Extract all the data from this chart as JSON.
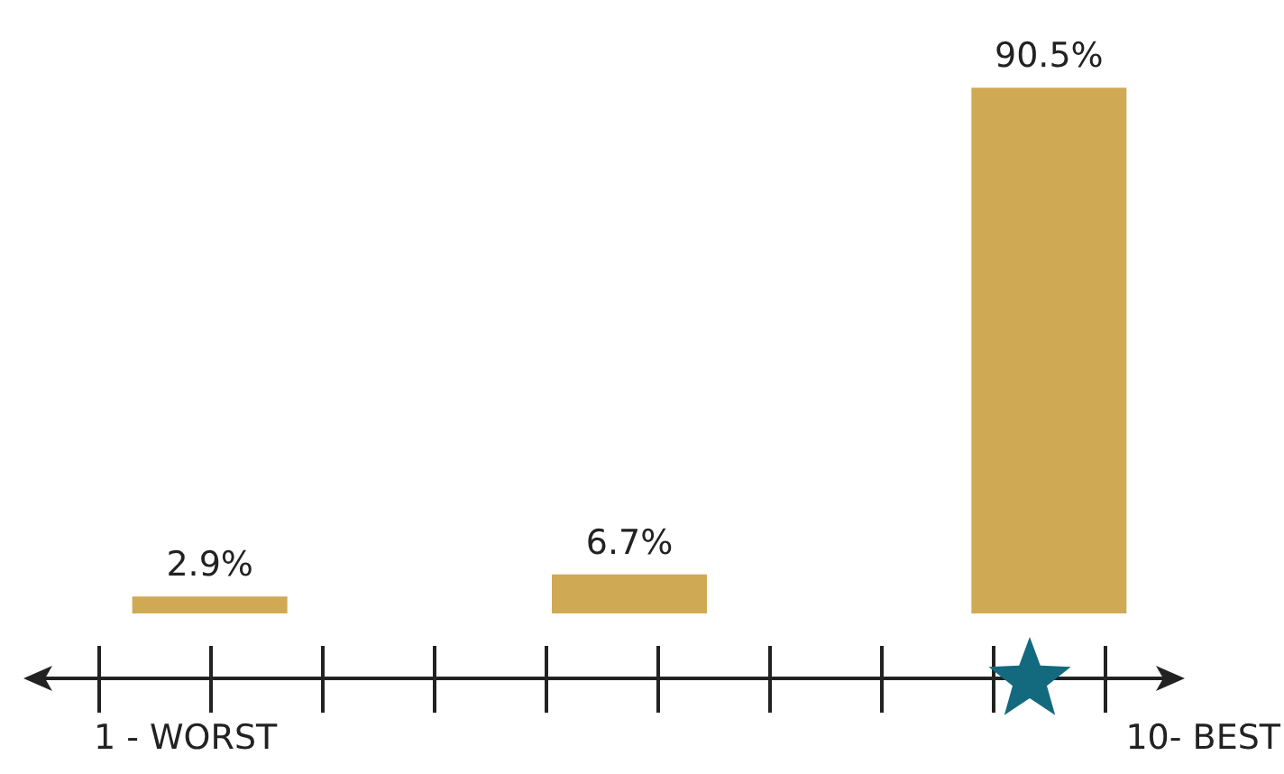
{
  "chart_data": {
    "type": "bar",
    "categories": [
      null,
      null,
      null
    ],
    "values": [
      2.9,
      6.7,
      90.5
    ],
    "color": "#d0a955",
    "value_labels": [
      "2.9%",
      "6.7%",
      "90.5%"
    ],
    "annotations": [
      "1 - WORST",
      "10- BEST"
    ]
  }
}
